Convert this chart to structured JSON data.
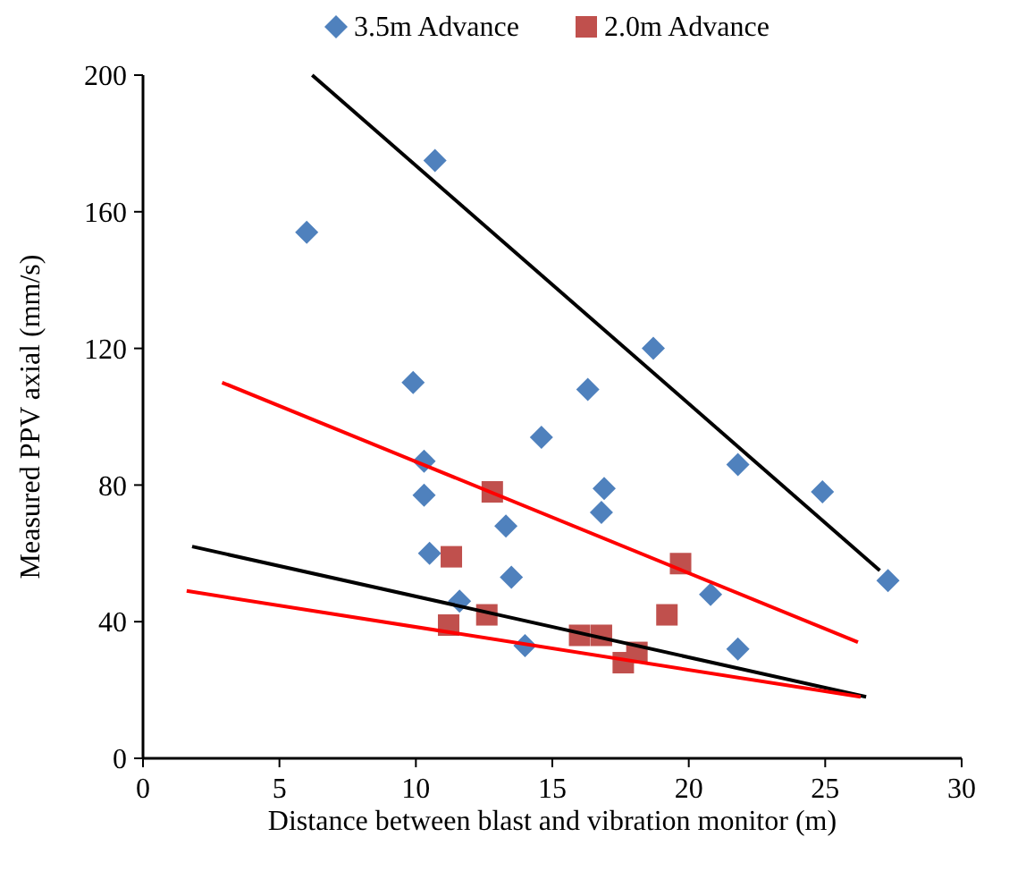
{
  "chart_data": {
    "type": "scatter",
    "xlabel": "Distance between blast and vibration monitor (m)",
    "ylabel": "Measured PPV axial (mm/s)",
    "xlim": [
      0,
      30
    ],
    "xticks": [
      0,
      5,
      10,
      15,
      20,
      25,
      30
    ],
    "ylim": [
      0,
      200
    ],
    "yticks": [
      0,
      40,
      80,
      120,
      160,
      200
    ],
    "grid": false,
    "legend": "top",
    "series": [
      {
        "name": "3.5m Advance",
        "color": "#4f81bd",
        "marker": "diamond",
        "x": [
          6.0,
          10.7,
          9.9,
          10.3,
          10.3,
          10.5,
          11.6,
          13.3,
          13.5,
          14.0,
          14.6,
          16.3,
          16.9,
          16.8,
          18.7,
          21.8,
          24.9,
          27.3,
          20.8,
          21.8
        ],
        "values": [
          154,
          175,
          110,
          87,
          77,
          60,
          46,
          68,
          53,
          33,
          94,
          108,
          79,
          72,
          120,
          86,
          78,
          52,
          48,
          32
        ]
      },
      {
        "name": "2.0m Advance",
        "color": "#c0504d",
        "marker": "square",
        "x": [
          12.8,
          11.3,
          11.2,
          12.6,
          19.7,
          19.2,
          16.0,
          16.8,
          17.6,
          18.1
        ],
        "values": [
          78,
          59,
          39,
          42,
          57,
          42,
          36,
          36,
          28,
          31
        ]
      },
      {
        "type": "line",
        "color": "#000000",
        "marker": "none",
        "x": [
          6.2,
          27.0
        ],
        "values": [
          200,
          55
        ]
      },
      {
        "type": "line",
        "color": "#ff0000",
        "marker": "none",
        "x": [
          2.9,
          26.2
        ],
        "values": [
          110,
          34
        ]
      },
      {
        "type": "line",
        "color": "#000000",
        "marker": "none",
        "x": [
          1.8,
          26.5
        ],
        "values": [
          62,
          18
        ]
      },
      {
        "type": "line",
        "color": "#ff0000",
        "marker": "none",
        "x": [
          1.6,
          26.3
        ],
        "values": [
          49,
          18
        ]
      }
    ]
  }
}
